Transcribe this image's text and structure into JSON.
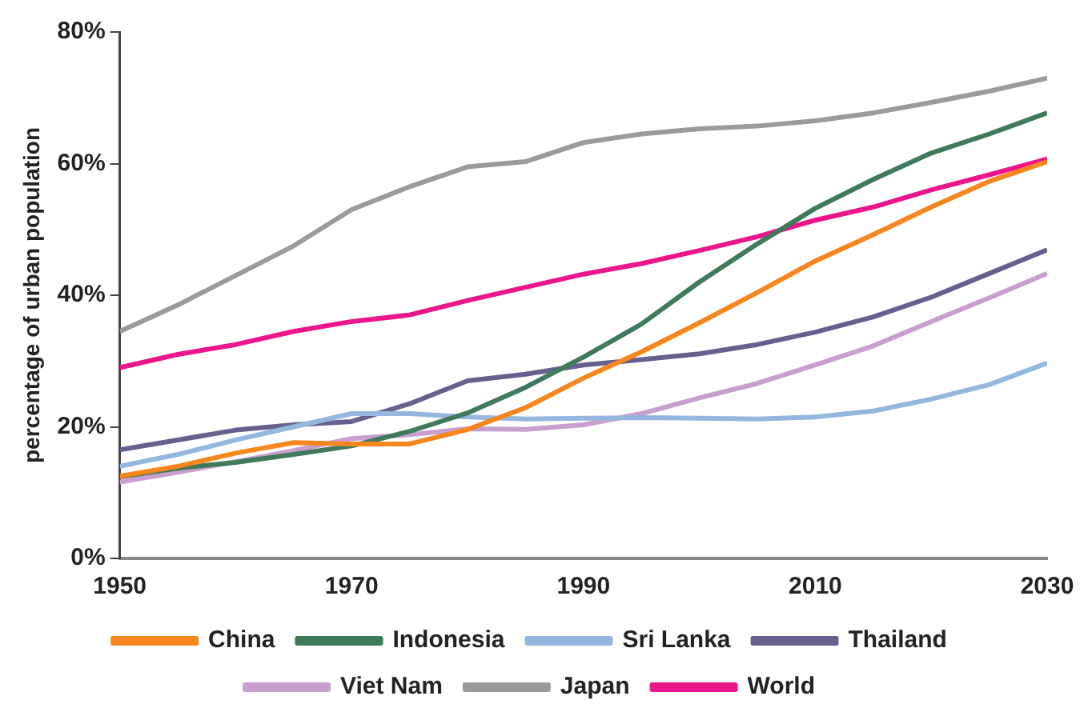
{
  "chart_data": {
    "type": "line",
    "ylabel": "percentage of urban population",
    "x": [
      1950,
      1955,
      1960,
      1965,
      1970,
      1975,
      1980,
      1985,
      1990,
      1995,
      2000,
      2005,
      2010,
      2015,
      2020,
      2025,
      2030
    ],
    "xlim": [
      1950,
      2030
    ],
    "xticks": [
      1950,
      1970,
      1990,
      2010,
      2030
    ],
    "ylim": [
      0,
      80
    ],
    "yticks": [
      {
        "value": 0,
        "label": "0%"
      },
      {
        "value": 20,
        "label": "20%"
      },
      {
        "value": 40,
        "label": "40%"
      },
      {
        "value": 60,
        "label": "60%"
      },
      {
        "value": 80,
        "label": "80%"
      }
    ],
    "grid": false,
    "legend": "bottom",
    "marker": "none",
    "line_style": "solid",
    "series": [
      {
        "name": "China",
        "color": "#f7861e",
        "values": [
          12.5,
          14,
          16,
          17.6,
          17.4,
          17.4,
          19.6,
          22.9,
          27.4,
          31.4,
          35.8,
          40.4,
          45.2,
          49.2,
          53.4,
          57.3,
          60.3
        ]
      },
      {
        "name": "Indonesia",
        "color": "#3f7a5a",
        "values": [
          12.4,
          13.7,
          14.6,
          15.8,
          17.1,
          19.3,
          22.1,
          26,
          30.6,
          35.6,
          42,
          47.8,
          53.2,
          57.6,
          61.6,
          64.5,
          67.7
        ]
      },
      {
        "name": "Sri Lanka",
        "color": "#94b7e0",
        "values": [
          14,
          15.8,
          18,
          20,
          22,
          22,
          21.5,
          21.2,
          21.3,
          21.4,
          21.3,
          21.2,
          21.5,
          22.4,
          24.2,
          26.4,
          29.7
        ]
      },
      {
        "name": "Thailand",
        "color": "#66608f",
        "values": [
          16.5,
          18,
          19.5,
          20.3,
          20.8,
          23.5,
          27,
          28,
          29.4,
          30.2,
          31.1,
          32.5,
          34.4,
          36.7,
          39.7,
          43.3,
          46.9
        ]
      },
      {
        "name": "Viet Nam",
        "color": "#c99fcf",
        "values": [
          11.6,
          13.1,
          14.7,
          16.4,
          18.2,
          18.8,
          19.7,
          19.6,
          20.3,
          22,
          24.4,
          26.6,
          29.4,
          32.3,
          36,
          39.6,
          43.3
        ]
      },
      {
        "name": "Japan",
        "color": "#9b9b9b",
        "values": [
          34.5,
          38.5,
          43,
          47.5,
          53,
          56.5,
          59.5,
          60.3,
          63.2,
          64.5,
          65.3,
          65.7,
          66.5,
          67.7,
          69.3,
          71,
          73
        ]
      },
      {
        "name": "World",
        "color": "#ec168c",
        "values": [
          29,
          31,
          32.5,
          34.5,
          36,
          37,
          39.2,
          41.2,
          43.2,
          44.8,
          46.8,
          48.9,
          51.4,
          53.4,
          56,
          58.3,
          60.7
        ]
      }
    ]
  }
}
